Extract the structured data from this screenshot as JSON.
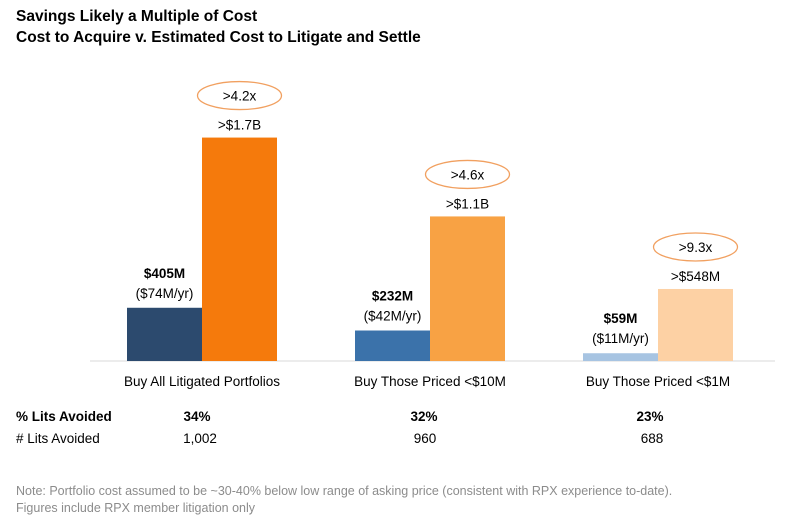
{
  "title_line1": "Savings Likely a Multiple of Cost",
  "title_line2": "Cost to Acquire v. Estimated Cost to Litigate and Settle",
  "chart_data": {
    "type": "bar",
    "categories": [
      "Buy All Litigated Portfolios",
      "Buy Those Priced <$10M",
      "Buy Those Priced <$1M"
    ],
    "series": [
      {
        "name": "Cost to Acquire ($M)",
        "values": [
          405,
          232,
          59
        ],
        "labels_bold": [
          "$405M",
          "$232M",
          "$59M"
        ],
        "labels_sub": [
          "($74M/yr)",
          "($42M/yr)",
          "($11M/yr)"
        ],
        "colors": [
          "#2c4a6e",
          "#3b72aa",
          "#a7c4e2"
        ]
      },
      {
        "name": "Estimated Cost to Litigate and Settle ($M)",
        "values": [
          1700,
          1100,
          548
        ],
        "labels": [
          ">$1.7B",
          ">$1.1B",
          ">$548M"
        ],
        "colors": [
          "#f57a0c",
          "#f8a244",
          "#fdd1a4"
        ]
      }
    ],
    "multiples": [
      ">4.2x",
      ">4.6x",
      ">9.3x"
    ],
    "ylim": [
      0,
      1750
    ],
    "xlabel": "",
    "ylabel": ""
  },
  "stats": {
    "pct_label": "% Lits Avoided",
    "pct_values": [
      "34%",
      "32%",
      "23%"
    ],
    "count_label": "# Lits Avoided",
    "count_values": [
      "1,002",
      "960",
      "688"
    ]
  },
  "note_line1": "Note: Portfolio cost assumed to be ~30-40% below low range of asking price (consistent with RPX experience to-date).",
  "note_line2": "Figures include RPX member litigation only",
  "colors": {
    "ellipse": "#f1a060",
    "baseline": "#d9d9d9",
    "note": "#8c8c8c"
  }
}
